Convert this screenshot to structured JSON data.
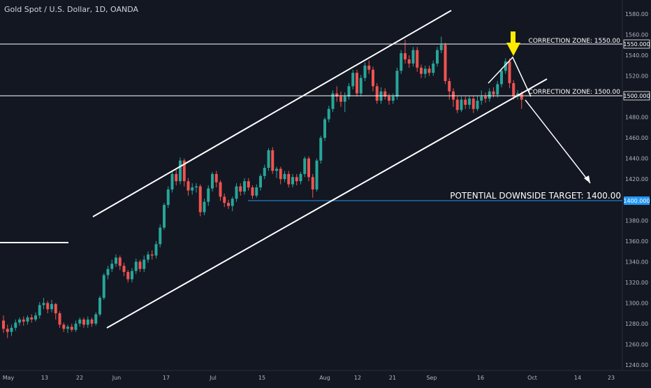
{
  "header": {
    "symbol_line": "Gold Spot / U.S. Dollar, 1D, OANDA"
  },
  "colors": {
    "background": "#131722",
    "up": "#26a69a",
    "down": "#ef5350",
    "axis_text": "#b2b5be",
    "annotation": "#ffffff",
    "marker": "#ffeb00",
    "target_line": "#2196f3"
  },
  "chart_data": {
    "type": "candlestick",
    "y_scale": {
      "min": 1240,
      "max": 1580,
      "step": 20
    },
    "y_tick_labels": [
      "1240.00",
      "1260.00",
      "1280.00",
      "1300.00",
      "1320.00",
      "1340.00",
      "1360.00",
      "1380.00",
      "1400.00",
      "1420.00",
      "1440.00",
      "1460.00",
      "1480.00",
      "1500.00",
      "1520.00",
      "1540.00",
      "1560.00",
      "1580.00"
    ],
    "x_tick_labels": [
      "May",
      "13",
      "22",
      "Jun",
      "17",
      "Jul",
      "15",
      "Aug",
      "12",
      "21",
      "Sep",
      "16",
      "Oct",
      "14",
      "23"
    ],
    "price_badges": [
      "1550.000",
      "1500.000",
      "1400.000"
    ],
    "candles": [
      [
        1283,
        1275,
        1288,
        1271
      ],
      [
        1275,
        1272,
        1279,
        1266
      ],
      [
        1272,
        1276,
        1279,
        1268
      ],
      [
        1276,
        1281,
        1284,
        1273
      ],
      [
        1281,
        1284,
        1286,
        1278
      ],
      [
        1284,
        1282,
        1287,
        1278
      ],
      [
        1282,
        1286,
        1288,
        1279
      ],
      [
        1286,
        1284,
        1289,
        1281
      ],
      [
        1284,
        1288,
        1291,
        1282
      ],
      [
        1288,
        1298,
        1301,
        1285
      ],
      [
        1298,
        1300,
        1305,
        1294
      ],
      [
        1300,
        1294,
        1302,
        1290
      ],
      [
        1294,
        1299,
        1303,
        1291
      ],
      [
        1299,
        1290,
        1300,
        1284
      ],
      [
        1290,
        1279,
        1292,
        1276
      ],
      [
        1279,
        1275,
        1281,
        1272
      ],
      [
        1275,
        1277,
        1279,
        1271
      ],
      [
        1277,
        1274,
        1280,
        1272
      ],
      [
        1274,
        1280,
        1283,
        1272
      ],
      [
        1280,
        1284,
        1286,
        1277
      ],
      [
        1284,
        1279,
        1286,
        1276
      ],
      [
        1279,
        1284,
        1287,
        1276
      ],
      [
        1284,
        1280,
        1286,
        1277
      ],
      [
        1280,
        1289,
        1291,
        1278
      ],
      [
        1289,
        1305,
        1307,
        1287
      ],
      [
        1305,
        1327,
        1329,
        1303
      ],
      [
        1327,
        1333,
        1336,
        1323
      ],
      [
        1333,
        1338,
        1342,
        1330
      ],
      [
        1338,
        1344,
        1347,
        1335
      ],
      [
        1344,
        1336,
        1346,
        1332
      ],
      [
        1336,
        1330,
        1339,
        1326
      ],
      [
        1330,
        1323,
        1332,
        1320
      ],
      [
        1323,
        1331,
        1334,
        1320
      ],
      [
        1331,
        1340,
        1343,
        1328
      ],
      [
        1340,
        1333,
        1342,
        1330
      ],
      [
        1333,
        1342,
        1346,
        1330
      ],
      [
        1342,
        1347,
        1350,
        1339
      ],
      [
        1347,
        1346,
        1351,
        1342
      ],
      [
        1346,
        1357,
        1360,
        1343
      ],
      [
        1357,
        1373,
        1376,
        1354
      ],
      [
        1373,
        1395,
        1397,
        1371
      ],
      [
        1395,
        1410,
        1413,
        1392
      ],
      [
        1410,
        1425,
        1427,
        1407
      ],
      [
        1425,
        1418,
        1429,
        1414
      ],
      [
        1418,
        1438,
        1441,
        1415
      ],
      [
        1438,
        1418,
        1440,
        1413
      ],
      [
        1418,
        1409,
        1421,
        1404
      ],
      [
        1409,
        1412,
        1416,
        1405
      ],
      [
        1412,
        1413,
        1416,
        1407
      ],
      [
        1413,
        1388,
        1415,
        1384
      ],
      [
        1388,
        1398,
        1401,
        1385
      ],
      [
        1398,
        1411,
        1414,
        1394
      ],
      [
        1411,
        1425,
        1427,
        1408
      ],
      [
        1425,
        1417,
        1428,
        1412
      ],
      [
        1417,
        1403,
        1419,
        1399
      ],
      [
        1403,
        1397,
        1406,
        1393
      ],
      [
        1397,
        1394,
        1400,
        1391
      ],
      [
        1394,
        1401,
        1403,
        1389
      ],
      [
        1401,
        1413,
        1416,
        1398
      ],
      [
        1413,
        1408,
        1416,
        1404
      ],
      [
        1408,
        1418,
        1421,
        1405
      ],
      [
        1418,
        1412,
        1421,
        1409
      ],
      [
        1412,
        1404,
        1414,
        1401
      ],
      [
        1404,
        1412,
        1415,
        1402
      ],
      [
        1412,
        1423,
        1425,
        1409
      ],
      [
        1423,
        1431,
        1434,
        1420
      ],
      [
        1431,
        1448,
        1450,
        1428
      ],
      [
        1448,
        1428,
        1451,
        1425
      ],
      [
        1428,
        1430,
        1432,
        1421
      ],
      [
        1430,
        1420,
        1432,
        1415
      ],
      [
        1420,
        1425,
        1428,
        1417
      ],
      [
        1425,
        1415,
        1428,
        1412
      ],
      [
        1415,
        1422,
        1425,
        1412
      ],
      [
        1422,
        1418,
        1425,
        1414
      ],
      [
        1418,
        1425,
        1427,
        1415
      ],
      [
        1425,
        1440,
        1442,
        1422
      ],
      [
        1440,
        1422,
        1442,
        1418
      ],
      [
        1422,
        1410,
        1425,
        1402
      ],
      [
        1410,
        1438,
        1440,
        1408
      ],
      [
        1438,
        1460,
        1462,
        1435
      ],
      [
        1460,
        1478,
        1480,
        1457
      ],
      [
        1478,
        1488,
        1491,
        1475
      ],
      [
        1488,
        1503,
        1506,
        1485
      ],
      [
        1503,
        1500,
        1510,
        1495
      ],
      [
        1500,
        1495,
        1505,
        1490
      ],
      [
        1495,
        1500,
        1504,
        1485
      ],
      [
        1500,
        1510,
        1513,
        1497
      ],
      [
        1510,
        1523,
        1526,
        1507
      ],
      [
        1523,
        1503,
        1526,
        1500
      ],
      [
        1503,
        1518,
        1521,
        1500
      ],
      [
        1518,
        1530,
        1533,
        1515
      ],
      [
        1530,
        1526,
        1535,
        1522
      ],
      [
        1526,
        1510,
        1529,
        1505
      ],
      [
        1510,
        1496,
        1513,
        1493
      ],
      [
        1496,
        1505,
        1509,
        1493
      ],
      [
        1505,
        1500,
        1508,
        1497
      ],
      [
        1500,
        1496,
        1503,
        1492
      ],
      [
        1496,
        1500,
        1503,
        1493
      ],
      [
        1500,
        1525,
        1528,
        1497
      ],
      [
        1525,
        1542,
        1545,
        1522
      ],
      [
        1542,
        1536,
        1555,
        1532
      ],
      [
        1536,
        1532,
        1540,
        1528
      ],
      [
        1532,
        1545,
        1548,
        1529
      ],
      [
        1545,
        1528,
        1548,
        1524
      ],
      [
        1528,
        1522,
        1531,
        1518
      ],
      [
        1522,
        1527,
        1530,
        1518
      ],
      [
        1527,
        1523,
        1530,
        1520
      ],
      [
        1523,
        1532,
        1535,
        1520
      ],
      [
        1532,
        1545,
        1548,
        1529
      ],
      [
        1545,
        1550,
        1558,
        1542
      ],
      [
        1550,
        1515,
        1552,
        1512
      ],
      [
        1515,
        1505,
        1518,
        1497
      ],
      [
        1505,
        1497,
        1508,
        1490
      ],
      [
        1497,
        1487,
        1500,
        1484
      ],
      [
        1487,
        1497,
        1500,
        1485
      ],
      [
        1497,
        1492,
        1500,
        1488
      ],
      [
        1492,
        1498,
        1501,
        1488
      ],
      [
        1498,
        1488,
        1501,
        1484
      ],
      [
        1488,
        1496,
        1501,
        1486
      ],
      [
        1496,
        1500,
        1506,
        1492
      ],
      [
        1500,
        1498,
        1504,
        1494
      ],
      [
        1498,
        1505,
        1508,
        1495
      ],
      [
        1505,
        1502,
        1509,
        1499
      ],
      [
        1502,
        1512,
        1515,
        1499
      ],
      [
        1512,
        1525,
        1528,
        1509
      ],
      [
        1525,
        1534,
        1537,
        1522
      ],
      [
        1534,
        1513,
        1537,
        1508
      ],
      [
        1513,
        1500,
        1516,
        1497
      ],
      [
        1500,
        1503,
        1506,
        1497
      ],
      [
        1503,
        1497,
        1505,
        1488
      ]
    ],
    "annotations": {
      "correction_upper": {
        "label": "CORRECTION ZONE: 1550.00",
        "price": 1550
      },
      "correction_lower": {
        "label": "CORRECTION ZONE: 1500.00",
        "price": 1500
      },
      "target": {
        "label": "POTENTIAL DOWNSIDE TARGET: 1400.00",
        "price": 1400
      }
    }
  }
}
